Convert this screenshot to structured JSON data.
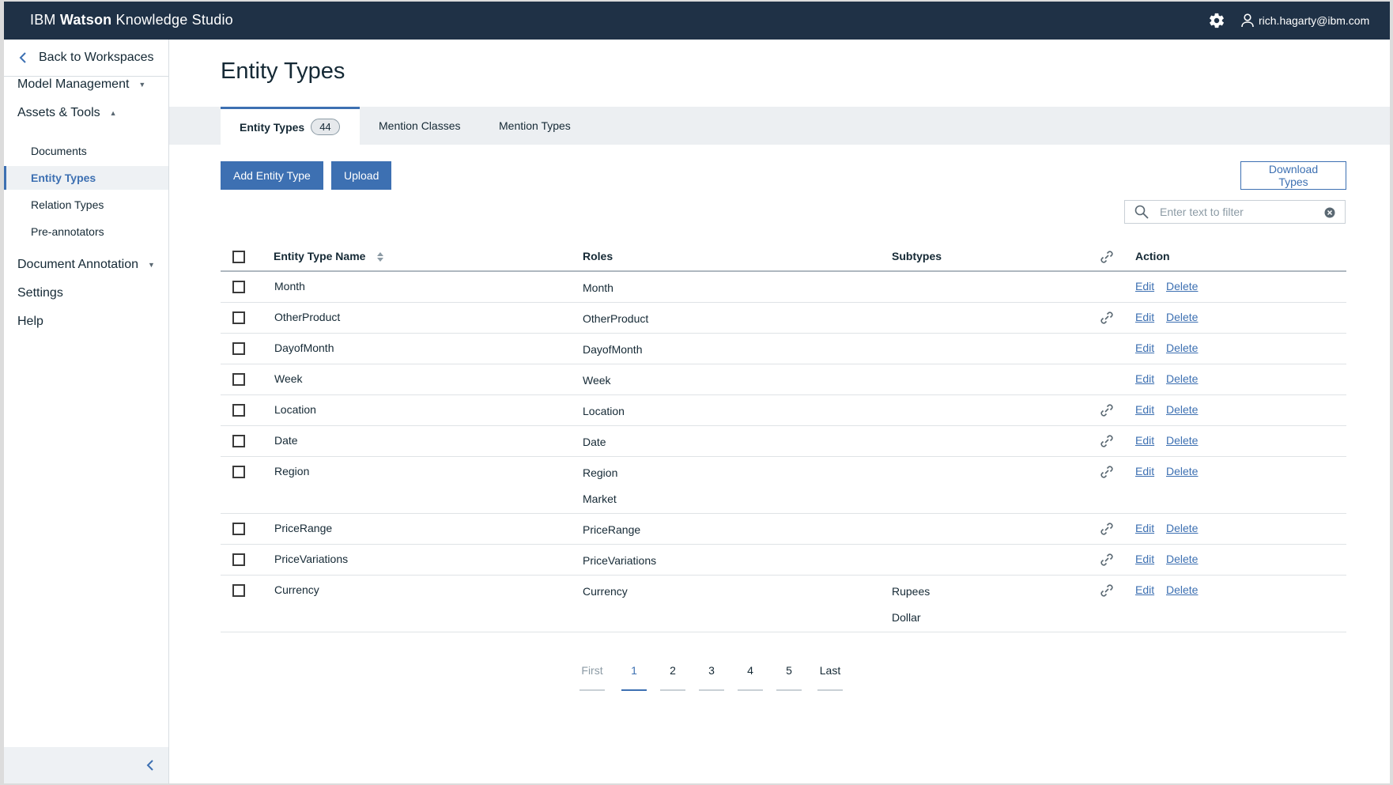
{
  "app": {
    "brand_prefix": "IBM",
    "brand_bold": "Watson",
    "brand_suffix": "Knowledge Studio",
    "user": "rich.hagarty@ibm.com"
  },
  "sidebar": {
    "back_label": "Back to Workspaces",
    "model_management": "Model Management",
    "assets_tools": "Assets & Tools",
    "sub_items": [
      "Documents",
      "Entity Types",
      "Relation Types",
      "Pre-annotators"
    ],
    "document_annotation": "Document Annotation",
    "settings": "Settings",
    "help": "Help"
  },
  "main": {
    "title": "Entity Types",
    "tabs": [
      {
        "label": "Entity Types",
        "count": "44"
      },
      {
        "label": "Mention Classes"
      },
      {
        "label": "Mention Types"
      }
    ],
    "buttons": {
      "add": "Add Entity Type",
      "upload": "Upload",
      "download": "Download Types"
    },
    "filter": {
      "placeholder": "Enter text to filter"
    }
  },
  "table": {
    "headers": {
      "name": "Entity Type Name",
      "roles": "Roles",
      "subtypes": "Subtypes",
      "action": "Action"
    },
    "edit_label": "Edit",
    "delete_label": "Delete",
    "rows": [
      {
        "name": "Month",
        "roles": [
          "Month"
        ],
        "subtypes": [],
        "linked": false
      },
      {
        "name": "OtherProduct",
        "roles": [
          "OtherProduct"
        ],
        "subtypes": [],
        "linked": true
      },
      {
        "name": "DayofMonth",
        "roles": [
          "DayofMonth"
        ],
        "subtypes": [],
        "linked": false
      },
      {
        "name": "Week",
        "roles": [
          "Week"
        ],
        "subtypes": [],
        "linked": false
      },
      {
        "name": "Location",
        "roles": [
          "Location"
        ],
        "subtypes": [],
        "linked": true
      },
      {
        "name": "Date",
        "roles": [
          "Date"
        ],
        "subtypes": [],
        "linked": true
      },
      {
        "name": "Region",
        "roles": [
          "Region",
          "Market"
        ],
        "subtypes": [],
        "linked": true
      },
      {
        "name": "PriceRange",
        "roles": [
          "PriceRange"
        ],
        "subtypes": [],
        "linked": true
      },
      {
        "name": "PriceVariations",
        "roles": [
          "PriceVariations"
        ],
        "subtypes": [],
        "linked": true
      },
      {
        "name": "Currency",
        "roles": [
          "Currency"
        ],
        "subtypes": [
          "Rupees",
          "Dollar"
        ],
        "linked": true
      }
    ]
  },
  "pagination": {
    "first": "First",
    "pages": [
      "1",
      "2",
      "3",
      "4",
      "5"
    ],
    "current": "1",
    "last": "Last"
  },
  "colors": {
    "topbar": "#1f3146",
    "accent": "#3d70b2"
  },
  "icons": {
    "settings": "gear-icon",
    "user": "user-icon",
    "search": "search-icon",
    "clear": "clear-icon",
    "link": "link-icon"
  }
}
